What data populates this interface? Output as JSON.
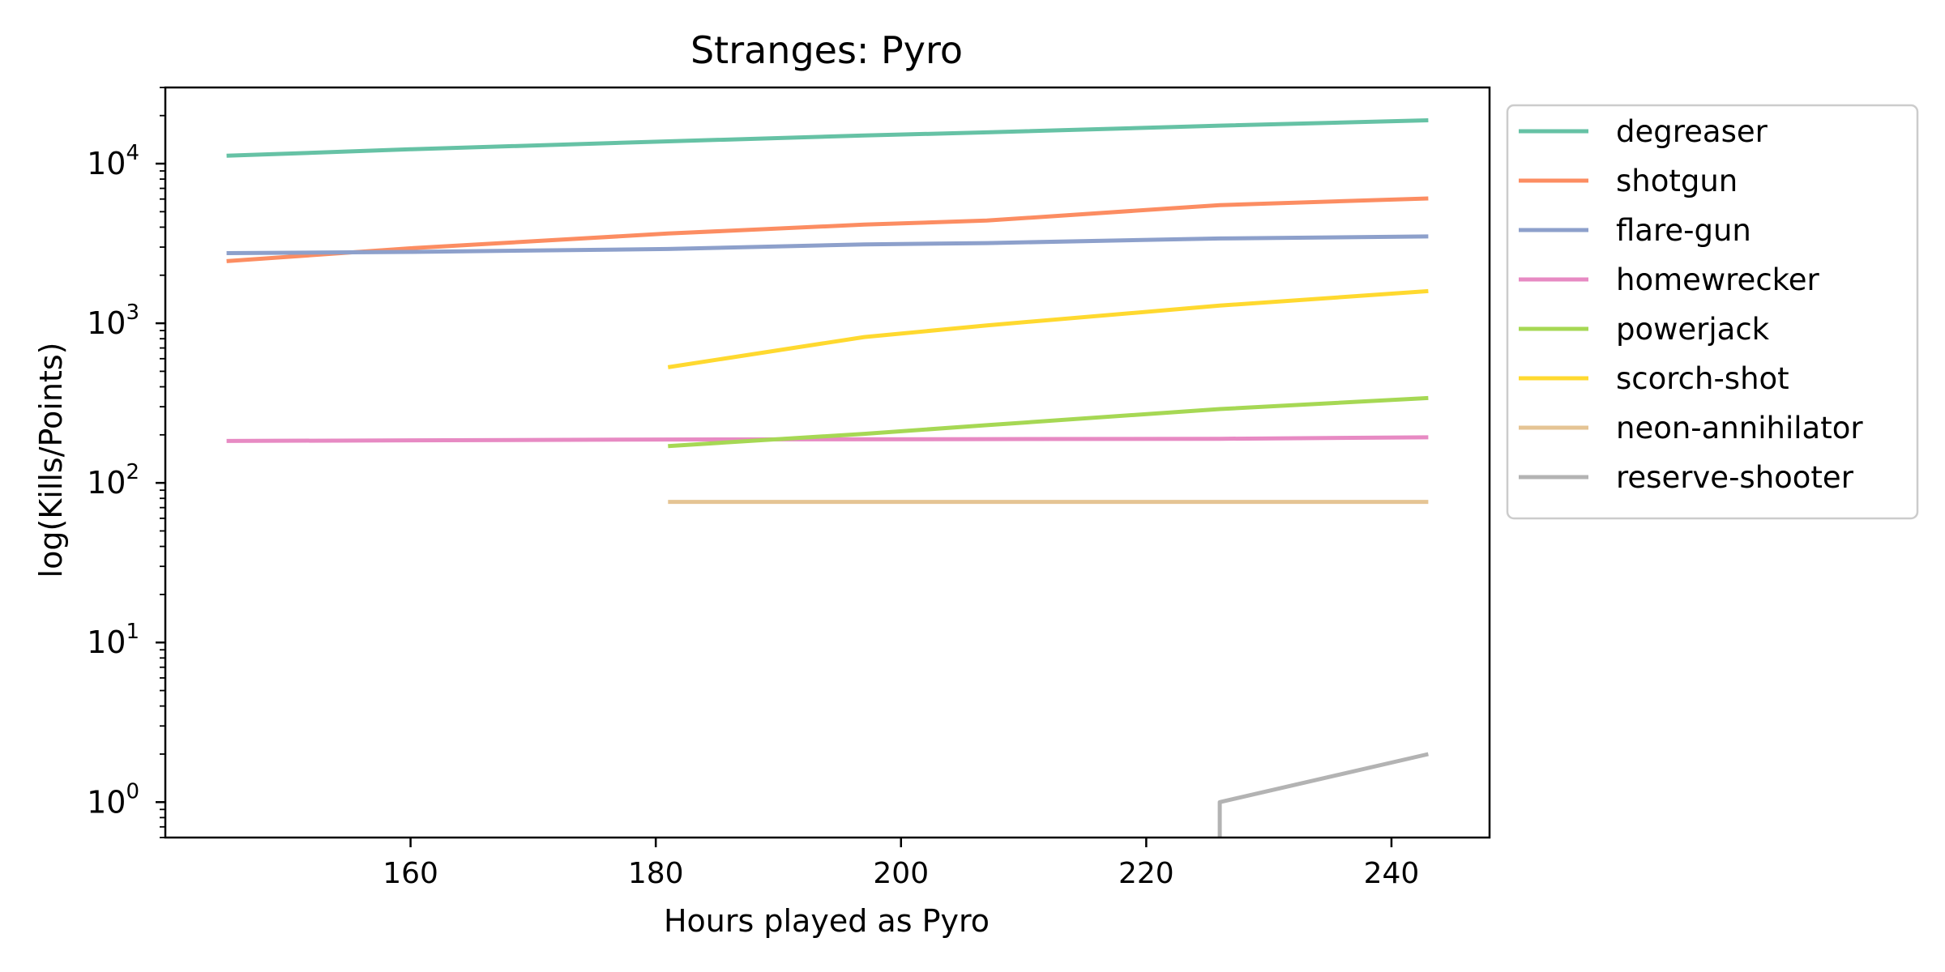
{
  "chart_data": {
    "type": "line",
    "title": "Stranges: Pyro",
    "xlabel": "Hours played as Pyro",
    "ylabel": "log(Kills/Points)",
    "xlim": [
      140,
      248
    ],
    "ylim": [
      0.6,
      30000
    ],
    "yscale": "log",
    "xticks": [
      160,
      180,
      200,
      220,
      240
    ],
    "yticks": [
      {
        "value": 1,
        "base": "10",
        "exp": "0"
      },
      {
        "value": 10,
        "base": "10",
        "exp": "1"
      },
      {
        "value": 100,
        "base": "10",
        "exp": "2"
      },
      {
        "value": 1000,
        "base": "10",
        "exp": "3"
      },
      {
        "value": 10000,
        "base": "10",
        "exp": "4"
      }
    ],
    "grid": false,
    "legend_position": "outside-right-top",
    "series": [
      {
        "name": "degreaser",
        "color": "#66c2a5",
        "points": [
          [
            145,
            11200
          ],
          [
            160,
            12300
          ],
          [
            181,
            13800
          ],
          [
            197,
            15000
          ],
          [
            207,
            15700
          ],
          [
            226,
            17300
          ],
          [
            243,
            18700
          ]
        ]
      },
      {
        "name": "shotgun",
        "color": "#fc8d62",
        "points": [
          [
            145,
            2450
          ],
          [
            160,
            2950
          ],
          [
            181,
            3650
          ],
          [
            197,
            4150
          ],
          [
            207,
            4400
          ],
          [
            226,
            5500
          ],
          [
            243,
            6050
          ]
        ]
      },
      {
        "name": "flare-gun",
        "color": "#8da0cb",
        "points": [
          [
            145,
            2750
          ],
          [
            160,
            2800
          ],
          [
            181,
            2920
          ],
          [
            197,
            3120
          ],
          [
            207,
            3180
          ],
          [
            226,
            3400
          ],
          [
            243,
            3500
          ]
        ]
      },
      {
        "name": "homewrecker",
        "color": "#e78ac3",
        "points": [
          [
            145,
            183
          ],
          [
            181,
            187
          ],
          [
            207,
            188
          ],
          [
            226,
            189
          ],
          [
            243,
            193
          ]
        ]
      },
      {
        "name": "powerjack",
        "color": "#a6d854",
        "points": [
          [
            181,
            170
          ],
          [
            197,
            203
          ],
          [
            207,
            230
          ],
          [
            226,
            290
          ],
          [
            243,
            340
          ]
        ]
      },
      {
        "name": "scorch-shot",
        "color": "#ffd92f",
        "points": [
          [
            181,
            530
          ],
          [
            197,
            820
          ],
          [
            207,
            970
          ],
          [
            226,
            1290
          ],
          [
            243,
            1590
          ]
        ]
      },
      {
        "name": "neon-annihilator",
        "color": "#e5c494",
        "points": [
          [
            181,
            76
          ],
          [
            197,
            76
          ],
          [
            207,
            76
          ],
          [
            226,
            76
          ],
          [
            243,
            76
          ]
        ]
      },
      {
        "name": "reserve-shooter",
        "color": "#b3b3b3",
        "points": [
          [
            226,
            0.6
          ],
          [
            226,
            1
          ],
          [
            243,
            2
          ]
        ]
      }
    ]
  }
}
